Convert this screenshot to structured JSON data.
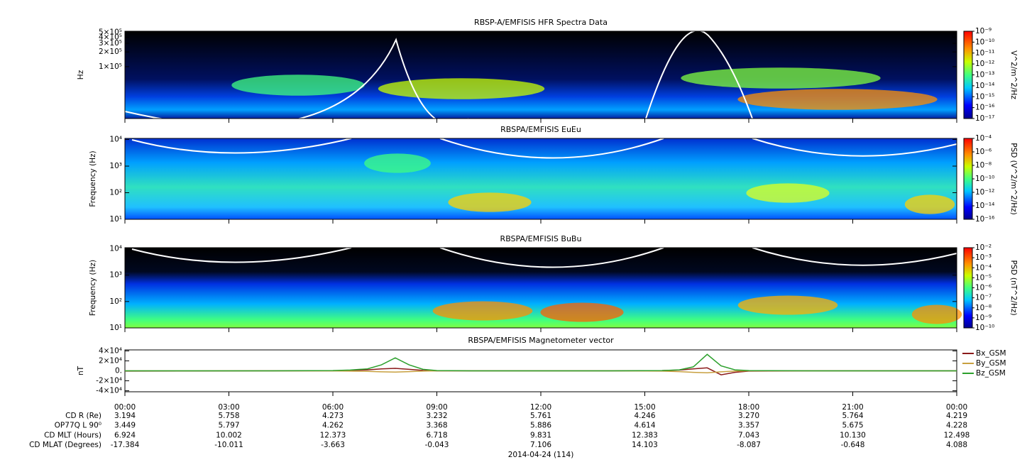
{
  "chart_data": [
    {
      "type": "spectrogram",
      "title": "RBSP-A/EMFISIS  HFR Spectra Data",
      "ylabel": "Hz",
      "log_scale": true,
      "ylim": [
        8700,
        530000
      ],
      "yticks": [
        {
          "value": 500000,
          "label": "5×10⁵"
        },
        {
          "value": 400000,
          "label": "4×10⁵"
        },
        {
          "value": 300000,
          "label": "3×10⁵"
        },
        {
          "value": 200000,
          "label": "2×10⁵"
        },
        {
          "value": 100000,
          "label": "1×10⁵"
        }
      ],
      "colorbar": {
        "label": "V^2/m^2/Hz",
        "lim": [
          1e-17,
          1e-09
        ],
        "ticks": [
          {
            "value": 1e-09,
            "label": "10⁻⁹"
          },
          {
            "value": 1e-10,
            "label": "10⁻¹⁰"
          },
          {
            "value": 1e-11,
            "label": "10⁻¹¹"
          },
          {
            "value": 1e-12,
            "label": "10⁻¹²"
          },
          {
            "value": 1e-13,
            "label": "10⁻¹³"
          },
          {
            "value": 1e-14,
            "label": "10⁻¹⁴"
          },
          {
            "value": 1e-15,
            "label": "10⁻¹⁵"
          },
          {
            "value": 1e-16,
            "label": "10⁻¹⁶"
          },
          {
            "value": 1e-17,
            "label": "10⁻¹⁷"
          }
        ]
      }
    },
    {
      "type": "spectrogram",
      "title": "RBSPA/EMFISIS  EuEu",
      "ylabel": "Frequency (Hz)",
      "log_scale": true,
      "ylim": [
        10,
        11000
      ],
      "yticks": [
        {
          "value": 10000,
          "label": "10⁴"
        },
        {
          "value": 1000,
          "label": "10³"
        },
        {
          "value": 100,
          "label": "10²"
        },
        {
          "value": 10,
          "label": "10¹"
        }
      ],
      "colorbar": {
        "label": "PSD (V^2/m^2/Hz)",
        "lim": [
          1e-16,
          0.0001
        ],
        "ticks": [
          {
            "value": 0.0001,
            "label": "10⁻⁴"
          },
          {
            "value": 1e-06,
            "label": "10⁻⁶"
          },
          {
            "value": 1e-08,
            "label": "10⁻⁸"
          },
          {
            "value": 1e-10,
            "label": "10⁻¹⁰"
          },
          {
            "value": 1e-12,
            "label": "10⁻¹²"
          },
          {
            "value": 1e-14,
            "label": "10⁻¹⁴"
          },
          {
            "value": 1e-16,
            "label": "10⁻¹⁶"
          }
        ]
      }
    },
    {
      "type": "spectrogram",
      "title": "RBSPA/EMFISIS  BuBu",
      "ylabel": "Frequency (Hz)",
      "log_scale": true,
      "ylim": [
        10,
        11000
      ],
      "yticks": [
        {
          "value": 10000,
          "label": "10⁴"
        },
        {
          "value": 1000,
          "label": "10³"
        },
        {
          "value": 100,
          "label": "10²"
        },
        {
          "value": 10,
          "label": "10¹"
        }
      ],
      "colorbar": {
        "label": "PSD (nT^2/Hz)",
        "lim": [
          1e-10,
          0.01
        ],
        "ticks": [
          {
            "value": 0.01,
            "label": "10⁻²"
          },
          {
            "value": 0.001,
            "label": "10⁻³"
          },
          {
            "value": 0.0001,
            "label": "10⁻⁴"
          },
          {
            "value": 1e-05,
            "label": "10⁻⁵"
          },
          {
            "value": 1e-06,
            "label": "10⁻⁶"
          },
          {
            "value": 1e-07,
            "label": "10⁻⁷"
          },
          {
            "value": 1e-08,
            "label": "10⁻⁸"
          },
          {
            "value": 1e-09,
            "label": "10⁻⁹"
          },
          {
            "value": 1e-10,
            "label": "10⁻¹⁰"
          }
        ]
      }
    },
    {
      "type": "line",
      "title": "RBSPA/EMFISIS  Magnetometer vector",
      "ylabel": "nT",
      "ylim": [
        -42000,
        42000
      ],
      "yticks": [
        {
          "value": 40000,
          "label": "4×10⁴"
        },
        {
          "value": 20000,
          "label": "2×10⁴"
        },
        {
          "value": 0,
          "label": "0."
        },
        {
          "value": -20000,
          "label": "-2×10⁴"
        },
        {
          "value": -40000,
          "label": "-4×10⁴"
        }
      ],
      "xlim": [
        0,
        24
      ],
      "xticks": [
        {
          "value": 0,
          "label": "00:00"
        },
        {
          "value": 3,
          "label": "03:00"
        },
        {
          "value": 6,
          "label": "06:00"
        },
        {
          "value": 9,
          "label": "09:00"
        },
        {
          "value": 12,
          "label": "12:00"
        },
        {
          "value": 15,
          "label": "15:00"
        },
        {
          "value": 18,
          "label": "18:00"
        },
        {
          "value": 21,
          "label": "21:00"
        },
        {
          "value": 24,
          "label": "00:00"
        }
      ],
      "x": [
        0,
        2,
        4,
        6,
        6.5,
        7,
        7.4,
        7.8,
        8.2,
        8.6,
        9,
        10,
        12,
        14,
        15.5,
        16,
        16.4,
        16.8,
        17.2,
        17.6,
        18,
        20,
        22,
        24
      ],
      "series": [
        {
          "name": "Bx_GSM",
          "color": "#8b1a1a",
          "values": [
            -500,
            -300,
            0,
            200,
            800,
            2000,
            4000,
            5000,
            3000,
            800,
            0,
            0,
            0,
            0,
            500,
            1500,
            4000,
            6000,
            -8000,
            -3000,
            -500,
            0,
            0,
            0
          ]
        },
        {
          "name": "By_GSM",
          "color": "#c8a040",
          "values": [
            0,
            0,
            0,
            -200,
            -500,
            -1000,
            -2000,
            -2500,
            -1500,
            -500,
            0,
            0,
            0,
            0,
            -500,
            -1500,
            -3000,
            -4000,
            -2000,
            -500,
            0,
            0,
            0,
            0
          ]
        },
        {
          "name": "Bz_GSM",
          "color": "#2ca02c",
          "values": [
            0,
            0,
            0,
            500,
            1500,
            4000,
            12000,
            26000,
            12000,
            3000,
            500,
            0,
            0,
            0,
            500,
            2000,
            8000,
            33000,
            10000,
            2000,
            500,
            0,
            0,
            0
          ]
        }
      ]
    }
  ],
  "ephemeris": [
    {
      "label": "CD R (Re)",
      "values": [
        "3.194",
        "5.758",
        "4.273",
        "3.232",
        "5.761",
        "4.246",
        "3.270",
        "5.764",
        "4.219"
      ]
    },
    {
      "label": "OP77Q L 90⁰",
      "values": [
        "3.449",
        "5.797",
        "4.262",
        "3.368",
        "5.886",
        "4.614",
        "3.357",
        "5.675",
        "4.228"
      ]
    },
    {
      "label": "CD MLT (Hours)",
      "values": [
        "6.924",
        "10.002",
        "12.373",
        "6.718",
        "9.831",
        "12.383",
        "7.043",
        "10.130",
        "12.498"
      ]
    },
    {
      "label": "CD MLAT (Degrees)",
      "values": [
        "-17.384",
        "-10.011",
        "-3.663",
        "-0.043",
        "7.106",
        "14.103",
        "-8.087",
        "-0.648",
        "4.088"
      ]
    }
  ],
  "date_label": "2014-04-24 (114)"
}
